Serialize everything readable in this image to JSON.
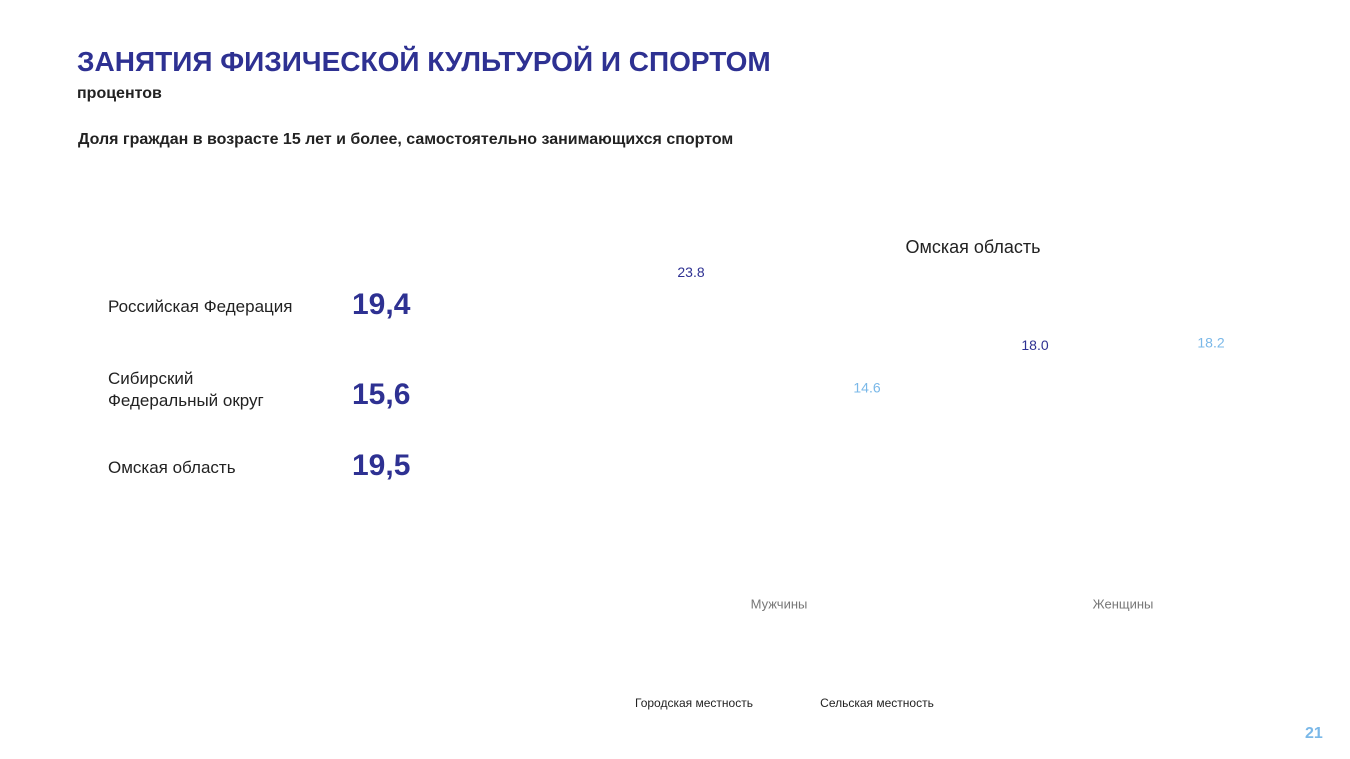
{
  "header": {
    "title": "ЗАНЯТИЯ ФИЗИЧЕСКОЙ КУЛЬТУРОЙ И СПОРТОМ",
    "unit": "процентов",
    "subtitle": "Доля граждан в возрасте 15 лет и более, самостоятельно занимающихся спортом"
  },
  "indicators": [
    {
      "label": "Российская Федерация",
      "value": "19,4"
    },
    {
      "label": "Сибирский Федеральный округ",
      "value": "15,6"
    },
    {
      "label": "Омская область",
      "value": "19,5"
    }
  ],
  "chart_data": {
    "type": "bar",
    "title": "Омская область",
    "categories": [
      "Мужчины",
      "Женщины"
    ],
    "series": [
      {
        "name": "Городская местность",
        "color": "#2e3192",
        "values": [
          23.8,
          18.0
        ],
        "value_labels": [
          "23.8",
          "18.0"
        ]
      },
      {
        "name": "Сельская местность",
        "color": "#7ab8e8",
        "values": [
          14.6,
          18.2
        ],
        "value_labels": [
          "14.6",
          "18.2"
        ]
      }
    ]
  },
  "page_number": "21"
}
